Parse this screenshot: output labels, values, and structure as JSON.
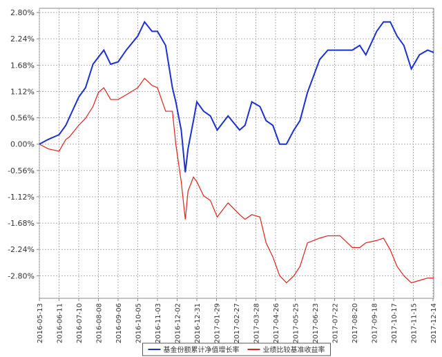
{
  "chart_data": {
    "type": "line",
    "x": [
      "2016-05-13",
      "2016-05-26",
      "2016-06-11",
      "2016-06-21",
      "2016-06-26",
      "2016-07-10",
      "2016-07-20",
      "2016-07-31",
      "2016-08-08",
      "2016-08-16",
      "2016-08-26",
      "2016-09-06",
      "2016-09-18",
      "2016-10-05",
      "2016-10-15",
      "2016-10-26",
      "2016-11-03",
      "2016-11-15",
      "2016-11-25",
      "2016-11-30",
      "2016-12-08",
      "2016-12-14",
      "2016-12-18",
      "2016-12-26",
      "2016-12-31",
      "2017-01-10",
      "2017-01-20",
      "2017-01-30",
      "2017-02-15",
      "2017-03-04",
      "2017-03-12",
      "2017-03-22",
      "2017-04-03",
      "2017-04-12",
      "2017-04-22",
      "2017-05-02",
      "2017-05-12",
      "2017-05-23",
      "2017-06-01",
      "2017-06-12",
      "2017-06-30",
      "2017-07-12",
      "2017-07-30",
      "2017-08-17",
      "2017-08-28",
      "2017-09-06",
      "2017-09-22",
      "2017-10-02",
      "2017-10-12",
      "2017-10-22",
      "2017-11-01",
      "2017-11-12",
      "2017-11-24",
      "2017-12-06",
      "2017-12-15"
    ],
    "series": [
      {
        "name": "基金份额累计净值增长率",
        "color": "#1c2fd0",
        "values": [
          0,
          0.1,
          0.2,
          0.4,
          0.56,
          1.0,
          1.2,
          1.7,
          1.85,
          2.0,
          1.7,
          1.75,
          2.0,
          2.3,
          2.6,
          2.4,
          2.4,
          2.1,
          1.2,
          0.9,
          0.3,
          -0.6,
          -0.1,
          0.5,
          0.9,
          0.7,
          0.6,
          0.3,
          0.6,
          0.3,
          0.4,
          0.9,
          0.8,
          0.5,
          0.4,
          0.0,
          0.0,
          0.3,
          0.5,
          1.1,
          1.8,
          2.0,
          2.0,
          2.0,
          2.1,
          1.9,
          2.4,
          2.6,
          2.6,
          2.3,
          2.1,
          1.6,
          1.9,
          2.0,
          1.95
        ]
      },
      {
        "name": "业绩比较基准收益率",
        "color": "#e0201c",
        "values": [
          0,
          -0.1,
          -0.15,
          0.1,
          0.15,
          0.4,
          0.55,
          0.8,
          1.1,
          1.2,
          0.95,
          0.95,
          1.05,
          1.2,
          1.4,
          1.25,
          1.2,
          0.7,
          0.7,
          0.0,
          -0.8,
          -1.6,
          -1.0,
          -0.7,
          -0.8,
          -1.1,
          -1.2,
          -1.55,
          -1.25,
          -1.5,
          -1.6,
          -1.5,
          -1.55,
          -2.1,
          -2.4,
          -2.8,
          -2.95,
          -2.8,
          -2.6,
          -2.1,
          -2.0,
          -1.95,
          -1.95,
          -2.2,
          -2.2,
          -2.1,
          -2.05,
          -2.0,
          -2.25,
          -2.6,
          -2.8,
          -2.95,
          -2.9,
          -2.85,
          -2.85
        ]
      }
    ],
    "xlim": [
      "2016-05-13",
      "2017-12-15"
    ],
    "xticks": [
      "2016-05-13",
      "2016-06-11",
      "2016-07-10",
      "2016-08-08",
      "2016-09-06",
      "2016-10-05",
      "2016-11-03",
      "2016-12-02",
      "2016-12-31",
      "2017-01-29",
      "2017-02-27",
      "2017-03-28",
      "2017-04-26",
      "2017-05-25",
      "2017-06-23",
      "2017-07-22",
      "2017-08-20",
      "2017-09-18",
      "2017-10-17",
      "2017-11-15",
      "2017-12-14"
    ],
    "ylim": [
      -3.28,
      2.89
    ],
    "yticks": [
      {
        "value": 2.8,
        "label": "2.80%"
      },
      {
        "value": 2.24,
        "label": "2.24%"
      },
      {
        "value": 1.68,
        "label": "1.68%"
      },
      {
        "value": 1.12,
        "label": "1.12%"
      },
      {
        "value": 0.56,
        "label": "0.56%"
      },
      {
        "value": 0,
        "label": "0.00%"
      },
      {
        "value": -0.56,
        "label": "-0.56%"
      },
      {
        "value": -1.12,
        "label": "-1.12%"
      },
      {
        "value": -1.68,
        "label": "-1.68%"
      },
      {
        "value": -2.24,
        "label": "-2.24%"
      },
      {
        "value": -2.8,
        "label": "-2.80%"
      }
    ],
    "grid": true,
    "legend": "bottom"
  }
}
